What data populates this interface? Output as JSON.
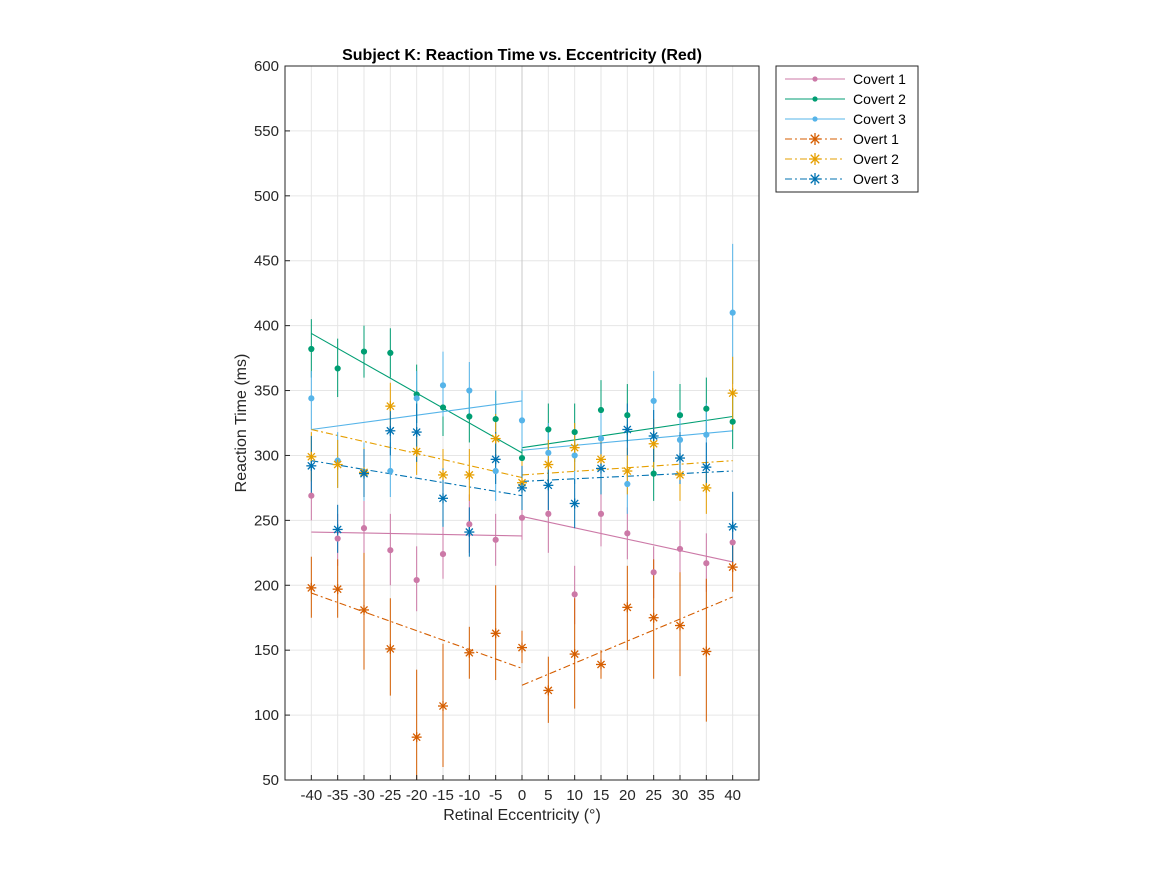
{
  "chart_data": {
    "type": "line",
    "title": "Subject K: Reaction Time vs. Eccentricity (Red)",
    "xlabel": "Retinal Eccentricity (°)",
    "ylabel": "Reaction Time (ms)",
    "xlim": [
      -45,
      45
    ],
    "ylim": [
      50,
      600
    ],
    "xticks": [
      -40,
      -35,
      -30,
      -25,
      -20,
      -15,
      -10,
      -5,
      0,
      5,
      10,
      15,
      20,
      25,
      30,
      35,
      40
    ],
    "xtick_labels": [
      "-40",
      "-35",
      "-30",
      "-25",
      "-20",
      "-15",
      "-10",
      "-5",
      "0",
      "5",
      "10",
      "15",
      "20",
      "25",
      "30",
      "35",
      "40"
    ],
    "yticks": [
      50,
      100,
      150,
      200,
      250,
      300,
      350,
      400,
      450,
      500,
      550,
      600
    ],
    "ytick_labels": [
      "50",
      "100",
      "150",
      "200",
      "250",
      "300",
      "350",
      "400",
      "450",
      "500",
      "550",
      "600"
    ],
    "grid": true,
    "legend_position": "outside-top-right",
    "x": [
      -40,
      -35,
      -30,
      -25,
      -20,
      -15,
      -10,
      -5,
      0,
      5,
      10,
      15,
      20,
      25,
      30,
      35,
      40
    ],
    "series": [
      {
        "name": "Covert 1",
        "color": "#cc79a7",
        "marker": "dot",
        "line_style": "solid",
        "values": [
          269,
          236,
          244,
          227,
          204,
          224,
          247,
          235,
          252,
          255,
          193,
          255,
          240,
          210,
          228,
          217,
          233
        ],
        "errors": [
          [
            250,
            290
          ],
          [
            215,
            255
          ],
          [
            220,
            265
          ],
          [
            200,
            255
          ],
          [
            180,
            230
          ],
          [
            205,
            245
          ],
          [
            225,
            270
          ],
          [
            215,
            255
          ],
          [
            235,
            270
          ],
          [
            225,
            285
          ],
          [
            170,
            215
          ],
          [
            230,
            280
          ],
          [
            220,
            260
          ],
          [
            190,
            230
          ],
          [
            205,
            250
          ],
          [
            195,
            240
          ],
          [
            215,
            250
          ]
        ],
        "fit_left": [
          [
            -40,
            241
          ],
          [
            0,
            238
          ]
        ],
        "fit_right": [
          [
            0,
            253
          ],
          [
            40,
            218
          ]
        ]
      },
      {
        "name": "Covert 2",
        "color": "#009e73",
        "marker": "dot",
        "line_style": "solid",
        "values": [
          382,
          367,
          380,
          379,
          347,
          337,
          330,
          328,
          298,
          320,
          318,
          335,
          331,
          286,
          331,
          336,
          326
        ],
        "errors": [
          [
            360,
            405
          ],
          [
            345,
            390
          ],
          [
            360,
            400
          ],
          [
            360,
            398
          ],
          [
            325,
            370
          ],
          [
            315,
            360
          ],
          [
            310,
            350
          ],
          [
            310,
            350
          ],
          [
            280,
            318
          ],
          [
            300,
            340
          ],
          [
            295,
            340
          ],
          [
            315,
            358
          ],
          [
            310,
            355
          ],
          [
            265,
            310
          ],
          [
            310,
            355
          ],
          [
            315,
            360
          ],
          [
            305,
            350
          ]
        ],
        "fit_left": [
          [
            -40,
            394
          ],
          [
            0,
            302
          ]
        ],
        "fit_right": [
          [
            0,
            306
          ],
          [
            40,
            330
          ]
        ]
      },
      {
        "name": "Covert 3",
        "color": "#56b4e9",
        "marker": "dot",
        "line_style": "solid",
        "values": [
          344,
          296,
          287,
          288,
          344,
          354,
          350,
          288,
          327,
          302,
          300,
          313,
          278,
          342,
          312,
          316,
          410
        ],
        "errors": [
          [
            320,
            365
          ],
          [
            275,
            318
          ],
          [
            265,
            310
          ],
          [
            268,
            310
          ],
          [
            325,
            365
          ],
          [
            330,
            380
          ],
          [
            328,
            372
          ],
          [
            265,
            350
          ],
          [
            305,
            350
          ],
          [
            280,
            325
          ],
          [
            278,
            322
          ],
          [
            290,
            335
          ],
          [
            255,
            300
          ],
          [
            320,
            365
          ],
          [
            290,
            335
          ],
          [
            295,
            340
          ],
          [
            355,
            463
          ]
        ],
        "fit_left": [
          [
            -40,
            320
          ],
          [
            0,
            342
          ]
        ],
        "fit_right": [
          [
            0,
            304
          ],
          [
            40,
            319
          ]
        ]
      },
      {
        "name": "Overt 1",
        "color": "#d55e00",
        "marker": "asterisk",
        "line_style": "dashdot",
        "values": [
          198,
          197,
          181,
          151,
          83,
          107,
          148,
          163,
          152,
          119,
          147,
          139,
          183,
          175,
          169,
          149,
          214
        ],
        "errors": [
          [
            175,
            222
          ],
          [
            175,
            220
          ],
          [
            135,
            225
          ],
          [
            115,
            190
          ],
          [
            50,
            135
          ],
          [
            60,
            155
          ],
          [
            128,
            168
          ],
          [
            127,
            200
          ],
          [
            140,
            165
          ],
          [
            94,
            145
          ],
          [
            105,
            190
          ],
          [
            128,
            150
          ],
          [
            150,
            215
          ],
          [
            128,
            220
          ],
          [
            130,
            210
          ],
          [
            95,
            205
          ],
          [
            195,
            235
          ]
        ],
        "fit_left": [
          [
            -40,
            194
          ],
          [
            0,
            136
          ]
        ],
        "fit_right": [
          [
            0,
            123
          ],
          [
            40,
            191
          ]
        ]
      },
      {
        "name": "Overt 2",
        "color": "#e69f00",
        "marker": "asterisk",
        "line_style": "dashdot",
        "values": [
          299,
          293,
          287,
          338,
          303,
          285,
          285,
          313,
          279,
          293,
          306,
          297,
          288,
          309,
          285,
          275,
          348
        ],
        "errors": [
          [
            280,
            318
          ],
          [
            275,
            312
          ],
          [
            268,
            306
          ],
          [
            320,
            356
          ],
          [
            285,
            322
          ],
          [
            265,
            305
          ],
          [
            265,
            305
          ],
          [
            295,
            332
          ],
          [
            260,
            298
          ],
          [
            275,
            312
          ],
          [
            288,
            325
          ],
          [
            280,
            315
          ],
          [
            270,
            306
          ],
          [
            290,
            328
          ],
          [
            265,
            305
          ],
          [
            255,
            295
          ],
          [
            320,
            376
          ]
        ],
        "fit_left": [
          [
            -40,
            320
          ],
          [
            0,
            283
          ]
        ],
        "fit_right": [
          [
            0,
            285
          ],
          [
            40,
            296
          ]
        ]
      },
      {
        "name": "Overt 3",
        "color": "#0072b2",
        "marker": "asterisk",
        "line_style": "dashdot",
        "values": [
          292,
          243,
          286,
          319,
          318,
          267,
          241,
          297,
          275,
          277,
          263,
          290,
          320,
          315,
          298,
          291,
          245
        ],
        "errors": [
          [
            270,
            315
          ],
          [
            225,
            262
          ],
          [
            268,
            305
          ],
          [
            300,
            338
          ],
          [
            295,
            340
          ],
          [
            245,
            290
          ],
          [
            222,
            260
          ],
          [
            278,
            318
          ],
          [
            258,
            292
          ],
          [
            258,
            296
          ],
          [
            244,
            282
          ],
          [
            270,
            310
          ],
          [
            300,
            340
          ],
          [
            295,
            335
          ],
          [
            278,
            318
          ],
          [
            272,
            310
          ],
          [
            218,
            272
          ]
        ],
        "fit_left": [
          [
            -40,
            296
          ],
          [
            0,
            269
          ]
        ],
        "fit_right": [
          [
            0,
            280
          ],
          [
            40,
            288
          ]
        ]
      }
    ]
  }
}
